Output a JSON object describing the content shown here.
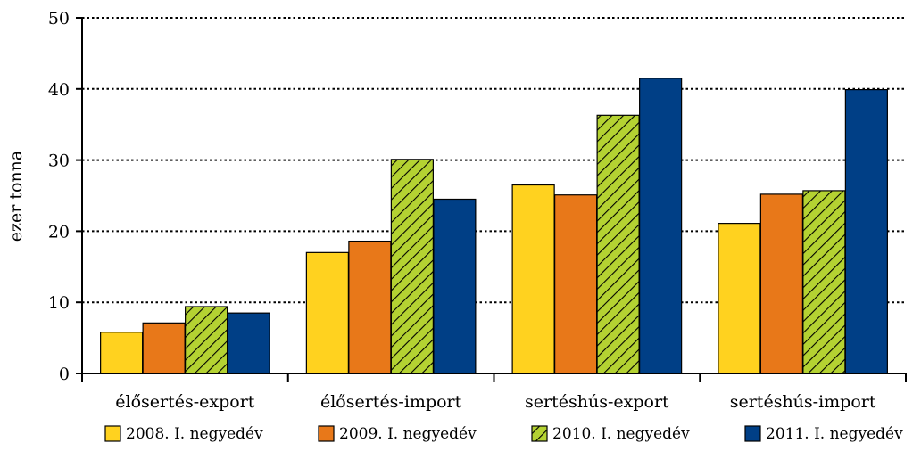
{
  "chart_data": {
    "type": "bar",
    "title": "",
    "xlabel": "",
    "ylabel": "ezer tonna",
    "ylim": [
      0,
      50
    ],
    "yticks": [
      0,
      10,
      20,
      30,
      40,
      50
    ],
    "grid": "horizontal dotted",
    "legend_position": "bottom",
    "categories": [
      "élősertés-export",
      "élősertés-import",
      "sertéshús-export",
      "sertéshús-import"
    ],
    "series": [
      {
        "name": "2008. I. negyedév",
        "color": "#FFD21F",
        "pattern": "solid",
        "values": [
          5.8,
          17.0,
          26.5,
          21.1
        ]
      },
      {
        "name": "2009. I. negyedév",
        "color": "#E87819",
        "pattern": "solid",
        "values": [
          7.1,
          18.6,
          25.1,
          25.2
        ]
      },
      {
        "name": "2010. I. negyedév",
        "color": "#B4D232",
        "pattern": "hatched",
        "values": [
          9.4,
          30.1,
          36.3,
          25.7
        ]
      },
      {
        "name": "2011. I. negyedév",
        "color": "#003F86",
        "pattern": "solid",
        "values": [
          8.5,
          24.5,
          41.5,
          39.9
        ]
      }
    ]
  }
}
